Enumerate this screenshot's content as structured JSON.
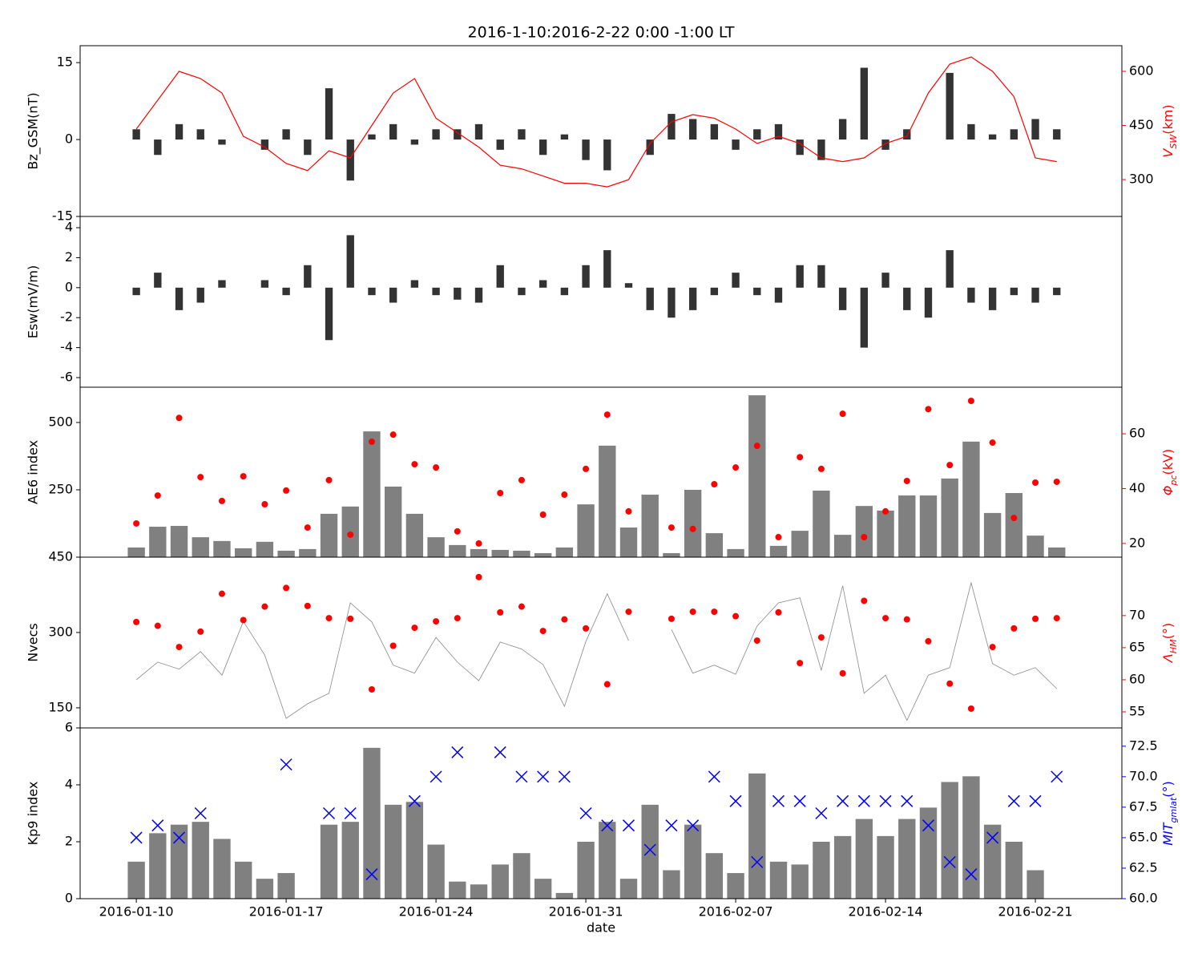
{
  "chart_data": [
    {
      "type": "bar",
      "title": "2016-1-10:2016-2-22 0:00 -1:00 LT",
      "x": [
        "2016-01-10",
        "2016-01-11",
        "2016-01-12",
        "2016-01-13",
        "2016-01-14",
        "2016-01-15",
        "2016-01-16",
        "2016-01-17",
        "2016-01-18",
        "2016-01-19",
        "2016-01-20",
        "2016-01-21",
        "2016-01-22",
        "2016-01-23",
        "2016-01-24",
        "2016-01-25",
        "2016-01-26",
        "2016-01-27",
        "2016-01-28",
        "2016-01-29",
        "2016-01-30",
        "2016-01-31",
        "2016-02-01",
        "2016-02-02",
        "2016-02-03",
        "2016-02-04",
        "2016-02-05",
        "2016-02-06",
        "2016-02-07",
        "2016-02-08",
        "2016-02-09",
        "2016-02-10",
        "2016-02-11",
        "2016-02-12",
        "2016-02-13",
        "2016-02-14",
        "2016-02-15",
        "2016-02-16",
        "2016-02-17",
        "2016-02-18",
        "2016-02-19",
        "2016-02-20",
        "2016-02-21",
        "2016-02-22"
      ],
      "xlim": [
        "2016-01-07T09:00Z",
        "2016-02-25T01:00Z"
      ],
      "ylabel": "Bz_GSM(nT)",
      "ylim": [
        -15,
        18.3
      ],
      "yticks": [
        -15,
        0,
        15
      ],
      "y2label": [
        "V",
        "SW",
        "(km)"
      ],
      "y2lim": [
        198,
        671
      ],
      "y2ticks": [
        300,
        450,
        600
      ],
      "series": [
        {
          "type": "bar",
          "color": "#333333",
          "values": [
            2,
            -3,
            3,
            2,
            -1,
            0,
            -2,
            2,
            -3,
            10,
            -8,
            1,
            3,
            -1,
            2,
            2,
            3,
            -2,
            2,
            -3,
            1,
            -4,
            -6,
            0,
            -3,
            5,
            4,
            3,
            -2,
            2,
            3,
            -3,
            -4,
            4,
            14,
            -2,
            2,
            0,
            13,
            3,
            1,
            2,
            4,
            2
          ]
        },
        {
          "type": "line",
          "axis": "y2",
          "color": "#ff0000",
          "values": [
            440,
            520,
            600,
            580,
            540,
            420,
            390,
            345,
            325,
            380,
            360,
            450,
            540,
            580,
            470,
            430,
            390,
            340,
            330,
            310,
            290,
            290,
            280,
            300,
            400,
            460,
            480,
            470,
            440,
            400,
            420,
            400,
            360,
            350,
            360,
            400,
            420,
            540,
            620,
            640,
            600,
            530,
            360,
            350
          ]
        }
      ]
    },
    {
      "type": "bar",
      "x": [
        "2016-01-10",
        "2016-01-11",
        "2016-01-12",
        "2016-01-13",
        "2016-01-14",
        "2016-01-15",
        "2016-01-16",
        "2016-01-17",
        "2016-01-18",
        "2016-01-19",
        "2016-01-20",
        "2016-01-21",
        "2016-01-22",
        "2016-01-23",
        "2016-01-24",
        "2016-01-25",
        "2016-01-26",
        "2016-01-27",
        "2016-01-28",
        "2016-01-29",
        "2016-01-30",
        "2016-01-31",
        "2016-02-01",
        "2016-02-02",
        "2016-02-03",
        "2016-02-04",
        "2016-02-05",
        "2016-02-06",
        "2016-02-07",
        "2016-02-08",
        "2016-02-09",
        "2016-02-10",
        "2016-02-11",
        "2016-02-12",
        "2016-02-13",
        "2016-02-14",
        "2016-02-15",
        "2016-02-16",
        "2016-02-17",
        "2016-02-18",
        "2016-02-19",
        "2016-02-20",
        "2016-02-21",
        "2016-02-22"
      ],
      "xlim": [
        "2016-01-07T09:00Z",
        "2016-02-25T01:00Z"
      ],
      "ylabel": "Esw(mV/m)",
      "ylim": [
        -6.64,
        4.75
      ],
      "yticks": [
        -6,
        -4,
        -2,
        0,
        2,
        4
      ],
      "series": [
        {
          "type": "bar",
          "color": "#333333",
          "values": [
            -0.5,
            1,
            -1.5,
            -1,
            0.5,
            0,
            0.5,
            -0.5,
            1.5,
            -3.5,
            3.5,
            -0.5,
            -1,
            0.5,
            -0.5,
            -0.8,
            -1,
            1.5,
            -0.5,
            0.5,
            -0.5,
            1.5,
            2.5,
            0.3,
            -1.5,
            -2,
            -1.5,
            -0.5,
            1,
            -0.5,
            -1,
            1.5,
            1.5,
            -1.5,
            -4,
            1,
            -1.5,
            -2,
            2.5,
            -1,
            -1.5,
            -0.5,
            -1,
            -0.5
          ]
        }
      ]
    },
    {
      "type": "bar",
      "x": [
        "2016-01-10",
        "2016-01-11",
        "2016-01-12",
        "2016-01-13",
        "2016-01-14",
        "2016-01-15",
        "2016-01-16",
        "2016-01-17",
        "2016-01-18",
        "2016-01-19",
        "2016-01-20",
        "2016-01-21",
        "2016-01-22",
        "2016-01-23",
        "2016-01-24",
        "2016-01-25",
        "2016-01-26",
        "2016-01-27",
        "2016-01-28",
        "2016-01-29",
        "2016-01-30",
        "2016-01-31",
        "2016-02-01",
        "2016-02-02",
        "2016-02-03",
        "2016-02-04",
        "2016-02-05",
        "2016-02-06",
        "2016-02-07",
        "2016-02-08",
        "2016-02-09",
        "2016-02-10",
        "2016-02-11",
        "2016-02-12",
        "2016-02-13",
        "2016-02-14",
        "2016-02-15",
        "2016-02-16",
        "2016-02-17",
        "2016-02-18",
        "2016-02-19",
        "2016-02-20",
        "2016-02-21",
        "2016-02-22"
      ],
      "xlim": [
        "2016-01-07T09:00Z",
        "2016-02-25T01:00Z"
      ],
      "ylabel": "AE6 index",
      "ylim": [
        0,
        631
      ],
      "yticks": [
        250,
        500
      ],
      "y2label": [
        "Φ",
        "pc",
        "(kV)"
      ],
      "y2lim": [
        15,
        77
      ],
      "y2ticks": [
        20,
        40,
        60
      ],
      "series": [
        {
          "type": "bar",
          "color": "#808080",
          "values": [
            36,
            113,
            116,
            74,
            60,
            33,
            57,
            24,
            30,
            161,
            188,
            467,
            262,
            161,
            74,
            45,
            30,
            27,
            24,
            15,
            36,
            196,
            414,
            110,
            232,
            15,
            250,
            89,
            30,
            601,
            42,
            98,
            247,
            83,
            190,
            173,
            229,
            229,
            292,
            429,
            164,
            238,
            80,
            36
          ]
        },
        {
          "type": "scatter",
          "axis": "y2",
          "color": "#ff0000",
          "values": [
            27.3,
            37.5,
            65.8,
            44.2,
            35.5,
            44.5,
            34.3,
            39.3,
            25.8,
            43.1,
            23.2,
            57.1,
            59.7,
            48.9,
            47.7,
            24.4,
            20,
            38.4,
            43.1,
            30.5,
            37.8,
            47.2,
            67,
            31.7,
            null,
            25.8,
            25.3,
            41.6,
            47.7,
            55.6,
            22.3,
            51.5,
            47.2,
            67.3,
            22.3,
            31.7,
            42.8,
            69,
            48.6,
            72,
            56.8,
            29.3,
            42.2,
            42.5
          ]
        }
      ]
    },
    {
      "type": "line",
      "x": [
        "2016-01-10",
        "2016-01-11",
        "2016-01-12",
        "2016-01-13",
        "2016-01-14",
        "2016-01-15",
        "2016-01-16",
        "2016-01-17",
        "2016-01-18",
        "2016-01-19",
        "2016-01-20",
        "2016-01-21",
        "2016-01-22",
        "2016-01-23",
        "2016-01-24",
        "2016-01-25",
        "2016-01-26",
        "2016-01-27",
        "2016-01-28",
        "2016-01-29",
        "2016-01-30",
        "2016-01-31",
        "2016-02-01",
        "2016-02-02",
        "2016-02-03",
        "2016-02-04",
        "2016-02-05",
        "2016-02-06",
        "2016-02-07",
        "2016-02-08",
        "2016-02-09",
        "2016-02-10",
        "2016-02-11",
        "2016-02-12",
        "2016-02-13",
        "2016-02-14",
        "2016-02-15",
        "2016-02-16",
        "2016-02-17",
        "2016-02-18",
        "2016-02-19",
        "2016-02-20",
        "2016-02-21",
        "2016-02-22"
      ],
      "xlim": [
        "2016-01-07T09:00Z",
        "2016-02-25T01:00Z"
      ],
      "ylabel": "Nvecs",
      "ylim": [
        110,
        450
      ],
      "yticks": [
        150,
        300,
        450
      ],
      "y2label": [
        "Λ",
        "HM",
        "(°)"
      ],
      "y2lim": [
        52.5,
        79.1
      ],
      "y2ticks": [
        55,
        60,
        65,
        70
      ],
      "series": [
        {
          "type": "line",
          "color": "#888888",
          "values": [
            206,
            241,
            227,
            262,
            215,
            322,
            255,
            129,
            158,
            179,
            359,
            321,
            235,
            219,
            290,
            241,
            204,
            281,
            267,
            236,
            153,
            282,
            377,
            284,
            null,
            306,
            219,
            235,
            217,
            313,
            359,
            369,
            225,
            393,
            179,
            215,
            125,
            215,
            230,
            399,
            238,
            215,
            230,
            188
          ]
        },
        {
          "type": "scatter",
          "axis": "y2",
          "color": "#ff0000",
          "values": [
            69,
            68.4,
            65.1,
            67.5,
            73.4,
            69.3,
            71.4,
            74.3,
            71.5,
            69.6,
            69.5,
            58.5,
            65.3,
            68.1,
            69.1,
            69.6,
            76,
            70.5,
            71.4,
            67.6,
            69.4,
            68,
            59.3,
            70.6,
            null,
            69.5,
            70.6,
            70.6,
            69.9,
            66.1,
            70.5,
            62.6,
            66.6,
            61,
            72.3,
            69.6,
            69.4,
            66,
            59.4,
            55.5,
            65.1,
            68,
            69.5,
            69.6
          ]
        }
      ]
    },
    {
      "type": "bar",
      "x": [
        "2016-01-10",
        "2016-01-11",
        "2016-01-12",
        "2016-01-13",
        "2016-01-14",
        "2016-01-15",
        "2016-01-16",
        "2016-01-17",
        "2016-01-18",
        "2016-01-19",
        "2016-01-20",
        "2016-01-21",
        "2016-01-22",
        "2016-01-23",
        "2016-01-24",
        "2016-01-25",
        "2016-01-26",
        "2016-01-27",
        "2016-01-28",
        "2016-01-29",
        "2016-01-30",
        "2016-01-31",
        "2016-02-01",
        "2016-02-02",
        "2016-02-03",
        "2016-02-04",
        "2016-02-05",
        "2016-02-06",
        "2016-02-07",
        "2016-02-08",
        "2016-02-09",
        "2016-02-10",
        "2016-02-11",
        "2016-02-12",
        "2016-02-13",
        "2016-02-14",
        "2016-02-15",
        "2016-02-16",
        "2016-02-17",
        "2016-02-18",
        "2016-02-19",
        "2016-02-20",
        "2016-02-21",
        "2016-02-22"
      ],
      "xlim": [
        "2016-01-07T09:00Z",
        "2016-02-25T01:00Z"
      ],
      "xlabel": "date",
      "xticks": [
        "2016-01-10",
        "2016-01-17",
        "2016-01-24",
        "2016-01-31",
        "2016-02-07",
        "2016-02-14",
        "2016-02-21"
      ],
      "ylabel": "Kp9 index",
      "ylim": [
        0,
        6
      ],
      "yticks": [
        0,
        2,
        4,
        6
      ],
      "y2label": [
        "MIT",
        "gmlat",
        "(°)"
      ],
      "y2lim": [
        60,
        74
      ],
      "y2ticks": [
        {
          "value": 60,
          "label": "60.0"
        },
        {
          "value": 62.5,
          "label": "62.5"
        },
        {
          "value": 65,
          "label": "65.0"
        },
        {
          "value": 67.5,
          "label": "67.5"
        },
        {
          "value": 70,
          "label": "70.0"
        },
        {
          "value": 72.5,
          "label": "72.5"
        }
      ],
      "series": [
        {
          "type": "bar",
          "color": "#808080",
          "values": [
            1.3,
            2.3,
            2.6,
            2.7,
            2.1,
            1.3,
            0.7,
            0.9,
            null,
            2.6,
            2.7,
            5.3,
            3.3,
            3.4,
            1.9,
            0.6,
            0.5,
            1.2,
            1.6,
            0.7,
            0.2,
            2,
            2.7,
            0.7,
            3.3,
            1,
            2.6,
            1.6,
            0.9,
            4.4,
            1.3,
            1.2,
            2,
            2.2,
            2.8,
            2.2,
            2.8,
            3.2,
            4.1,
            4.3,
            2.6,
            2,
            1,
            null
          ]
        },
        {
          "type": "scatter",
          "marker": "x",
          "axis": "y2",
          "color": "#0000ff",
          "values": [
            65,
            66,
            65,
            67,
            null,
            null,
            null,
            71,
            null,
            67,
            67,
            62,
            null,
            68,
            70,
            72,
            null,
            72,
            70,
            70,
            70,
            67,
            66,
            66,
            64,
            66,
            66,
            70,
            68,
            63,
            68,
            68,
            67,
            68,
            68,
            68,
            68,
            66,
            63,
            62,
            65,
            68,
            68,
            70
          ]
        }
      ]
    }
  ]
}
